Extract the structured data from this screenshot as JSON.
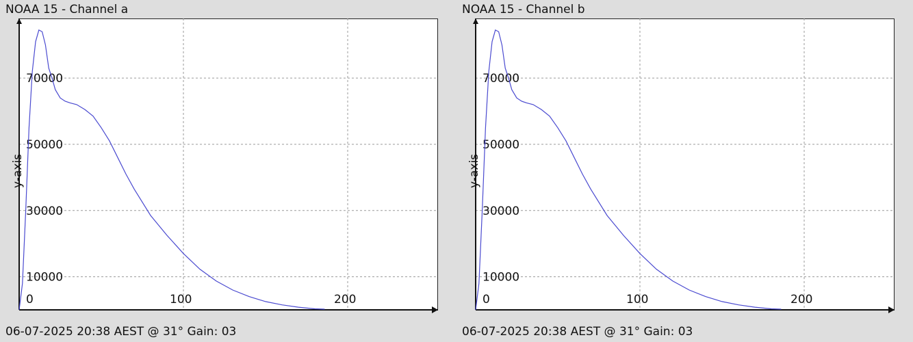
{
  "charts": [
    {
      "title": "NOAA 15 - Channel a",
      "footer": "06-07-2025 20:38 AEST @ 31° Gain: 03"
    },
    {
      "title": "NOAA 15 - Channel b",
      "footer": "06-07-2025 20:38 AEST @ 31° Gain: 03"
    }
  ],
  "chart_data": [
    {
      "type": "line",
      "title": "NOAA 15 - Channel a",
      "xlabel": "",
      "ylabel": "y-axis",
      "xlim": [
        0,
        255
      ],
      "ylim": [
        0,
        88000
      ],
      "x_ticks": [
        0,
        100,
        200
      ],
      "y_ticks": [
        10000,
        30000,
        50000,
        70000
      ],
      "grid": true,
      "color": "#4a4ad0",
      "series": [
        {
          "x": [
            0,
            2,
            4,
            6,
            8,
            10,
            12,
            14,
            16,
            18,
            20,
            22,
            25,
            28,
            31,
            35,
            40,
            45,
            50,
            55,
            60,
            65,
            70,
            80,
            90,
            100,
            110,
            120,
            130,
            140,
            150,
            160,
            170,
            180,
            186
          ],
          "y": [
            0,
            8000,
            30000,
            55000,
            72000,
            81000,
            84500,
            84000,
            80000,
            73000,
            70000,
            66500,
            64000,
            63000,
            62500,
            62000,
            60500,
            58500,
            55000,
            51000,
            46000,
            41000,
            36500,
            28500,
            22500,
            17000,
            12300,
            8700,
            6000,
            4000,
            2500,
            1500,
            800,
            300,
            200
          ]
        }
      ]
    },
    {
      "type": "line",
      "title": "NOAA 15 - Channel b",
      "xlabel": "",
      "ylabel": "y-axis",
      "xlim": [
        0,
        255
      ],
      "ylim": [
        0,
        88000
      ],
      "x_ticks": [
        0,
        100,
        200
      ],
      "y_ticks": [
        10000,
        30000,
        50000,
        70000
      ],
      "grid": true,
      "color": "#4a4ad0",
      "series": [
        {
          "x": [
            0,
            2,
            4,
            6,
            8,
            10,
            12,
            14,
            16,
            18,
            20,
            22,
            25,
            28,
            31,
            35,
            40,
            45,
            50,
            55,
            60,
            65,
            70,
            80,
            90,
            100,
            110,
            120,
            130,
            140,
            150,
            160,
            170,
            180,
            186
          ],
          "y": [
            0,
            8000,
            30000,
            55000,
            72000,
            81000,
            84500,
            84000,
            80000,
            73000,
            70000,
            66500,
            64000,
            63000,
            62500,
            62000,
            60500,
            58500,
            55000,
            51000,
            46000,
            41000,
            36500,
            28500,
            22500,
            17000,
            12300,
            8700,
            6000,
            4000,
            2500,
            1500,
            800,
            300,
            200
          ]
        }
      ]
    }
  ]
}
